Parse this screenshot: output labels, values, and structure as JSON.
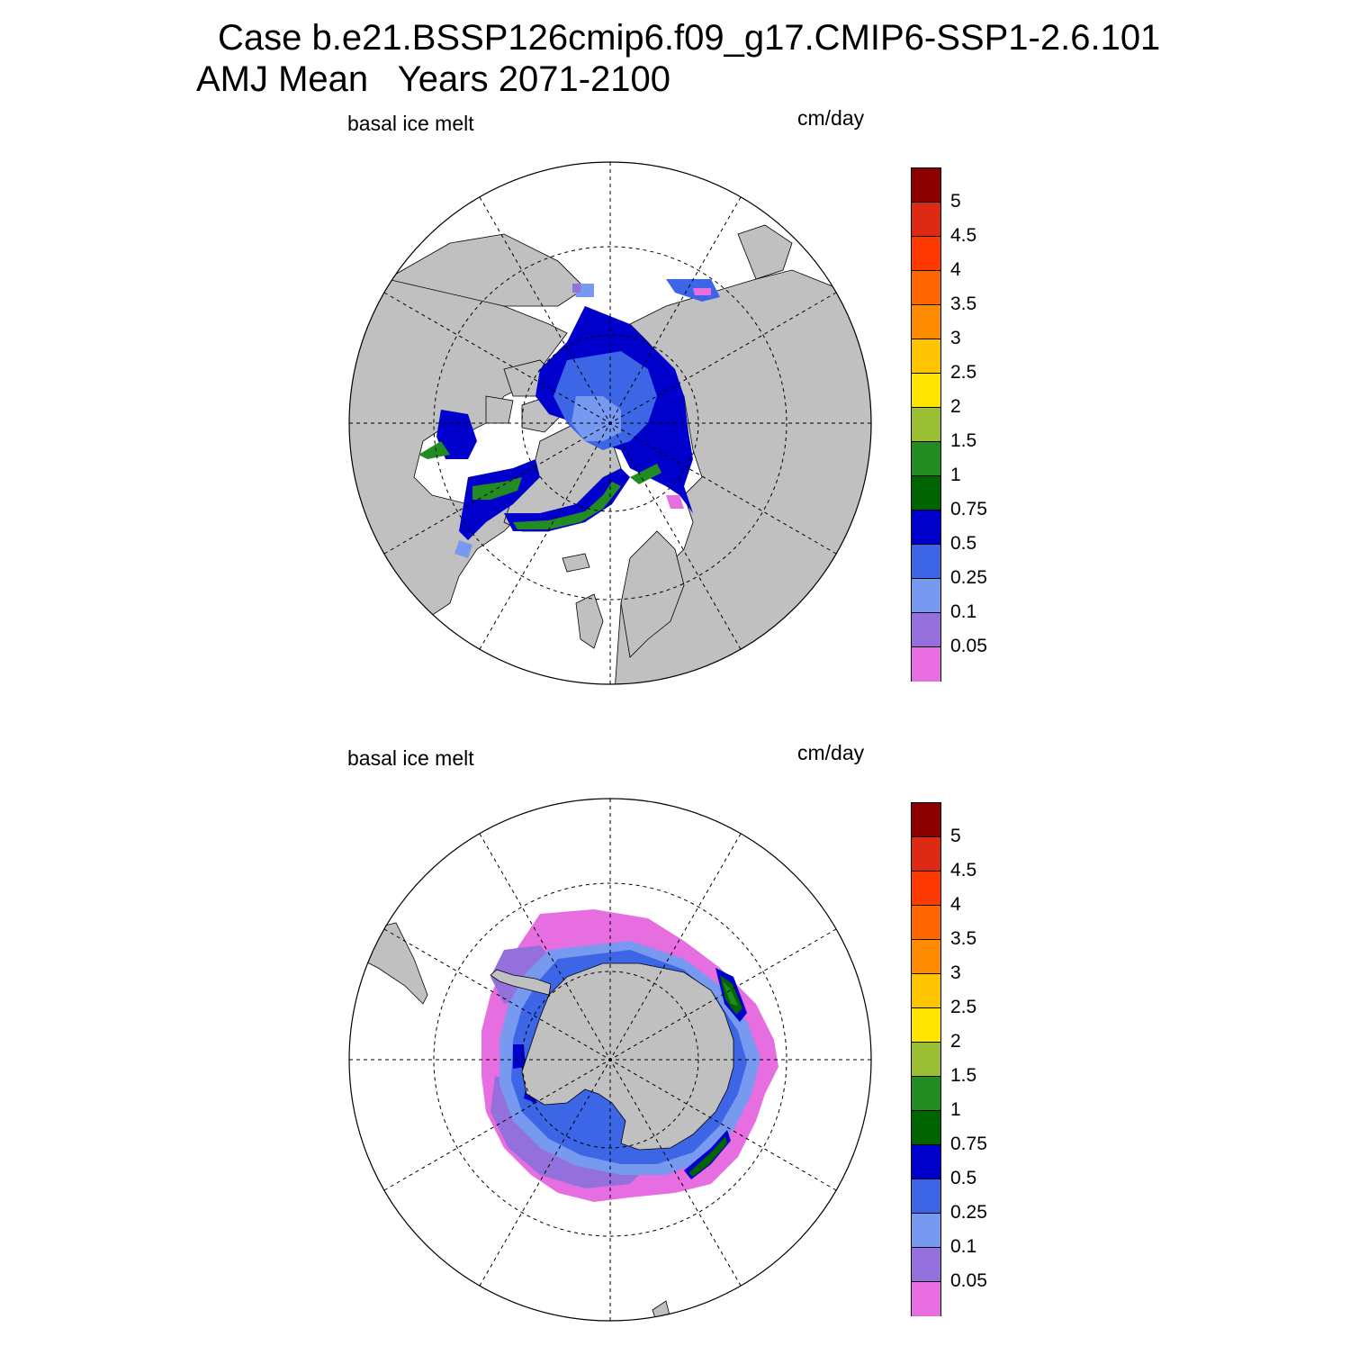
{
  "title": {
    "line1": "Case b.e21.BSSP126cmip6.f09_g17.CMIP6-SSP1-2.6.101",
    "line2": "AMJ Mean   Years 2071-2100"
  },
  "panels": [
    {
      "id": "north",
      "left_label": "basal ice melt",
      "right_label": "cm/day"
    },
    {
      "id": "south",
      "left_label": "basal ice melt",
      "right_label": "cm/day"
    }
  ],
  "colorbar": {
    "levels": [
      "5",
      "4.5",
      "4",
      "3.5",
      "3",
      "2.5",
      "2",
      "1.5",
      "1",
      "0.75",
      "0.5",
      "0.25",
      "0.1",
      "0.05"
    ],
    "colors": [
      "#8b0000",
      "#dc2a14",
      "#ff3a00",
      "#ff6600",
      "#ff8c00",
      "#ffc400",
      "#ffe400",
      "#9bbf32",
      "#228b22",
      "#006400",
      "#0000cd",
      "#3d66e6",
      "#7799f0",
      "#9370db",
      "#e66ee0"
    ]
  },
  "colors": {
    "land": "#c0c0c0",
    "ocean": "#ffffff",
    "grid": "#000000"
  }
}
